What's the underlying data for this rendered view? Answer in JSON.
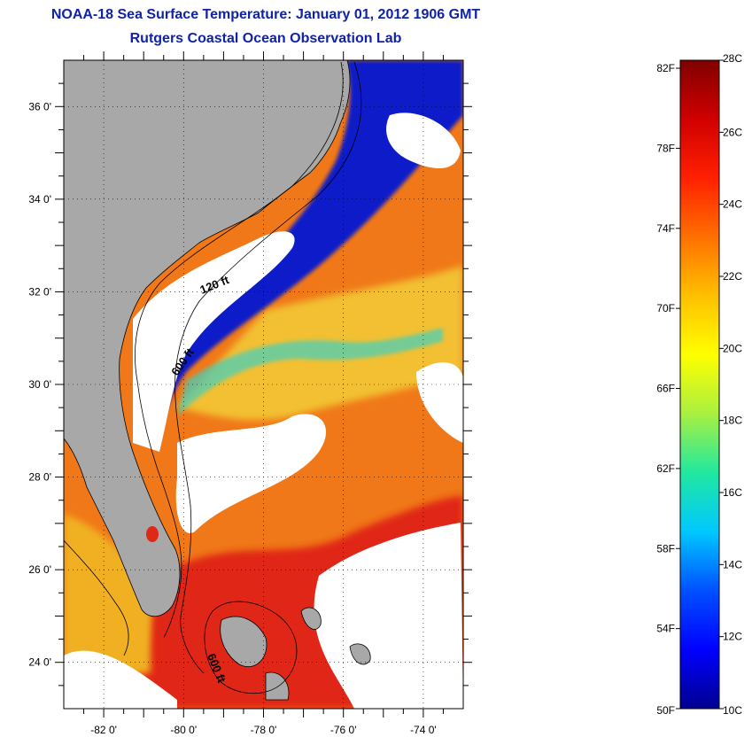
{
  "header": {
    "title": "NOAA-18 Sea Surface Temperature:  January 01, 2012 1906 GMT",
    "subtitle": "Rutgers Coastal Ocean Observation Lab"
  },
  "map": {
    "lon_range": [
      -83,
      -73
    ],
    "lat_range": [
      23,
      37
    ],
    "lon_ticks": [
      {
        "value": -82,
        "label": "-82 0'"
      },
      {
        "value": -80,
        "label": "-80 0'"
      },
      {
        "value": -78,
        "label": "-78 0'"
      },
      {
        "value": -76,
        "label": "-76 0'"
      },
      {
        "value": -74,
        "label": "-74 0'"
      }
    ],
    "lat_ticks": [
      {
        "value": 24,
        "label": "24 0'"
      },
      {
        "value": 26,
        "label": "26 0'"
      },
      {
        "value": 28,
        "label": "28 0'"
      },
      {
        "value": 30,
        "label": "30 0'"
      },
      {
        "value": 32,
        "label": "32 0'"
      },
      {
        "value": 34,
        "label": "34 0'"
      },
      {
        "value": 36,
        "label": "36 0'"
      }
    ],
    "contour_labels": [
      "120 ft",
      "600 ft",
      "600 ft"
    ],
    "colors": {
      "land": "#a8a8a8",
      "cloud": "#ffffff",
      "cold": "#0a1cc8",
      "warm": "#f07818",
      "hot": "#e02818"
    }
  },
  "colorbar": {
    "fahrenheit": [
      {
        "value": 82,
        "label": "82F"
      },
      {
        "value": 78,
        "label": "78F"
      },
      {
        "value": 74,
        "label": "74F"
      },
      {
        "value": 70,
        "label": "70F"
      },
      {
        "value": 66,
        "label": "66F"
      },
      {
        "value": 62,
        "label": "62F"
      },
      {
        "value": 58,
        "label": "58F"
      },
      {
        "value": 54,
        "label": "54F"
      },
      {
        "value": 50,
        "label": "50F"
      }
    ],
    "celsius": [
      {
        "value": 28,
        "label": "28C"
      },
      {
        "value": 26,
        "label": "26C"
      },
      {
        "value": 24,
        "label": "24C"
      },
      {
        "value": 22,
        "label": "22C"
      },
      {
        "value": 20,
        "label": "20C"
      },
      {
        "value": 18,
        "label": "18C"
      },
      {
        "value": 16,
        "label": "16C"
      },
      {
        "value": 14,
        "label": "14C"
      },
      {
        "value": 12,
        "label": "12C"
      },
      {
        "value": 10,
        "label": "10C"
      }
    ],
    "range_c": [
      10,
      28
    ],
    "stops": [
      "#00008f",
      "#0000ff",
      "#0050ff",
      "#00c8ff",
      "#20e8a0",
      "#a8f040",
      "#ffff00",
      "#ffc000",
      "#ff7000",
      "#ff2000",
      "#d00000",
      "#800000"
    ]
  }
}
